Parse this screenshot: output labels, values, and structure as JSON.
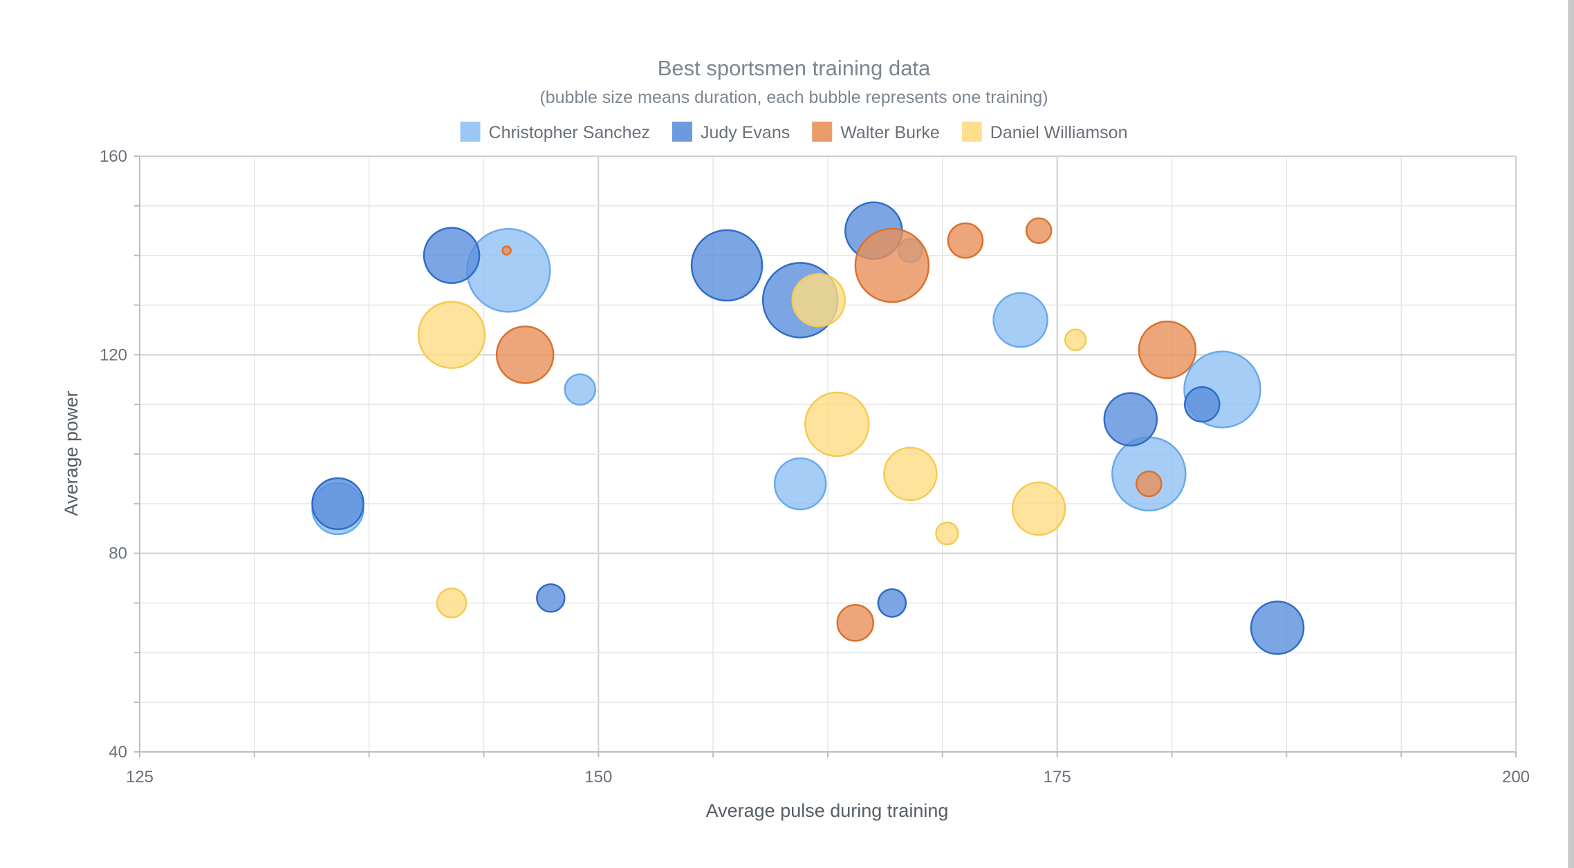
{
  "chart_data": {
    "type": "scatter",
    "title": "Best sportsmen training data",
    "subtitle": "(bubble size means duration, each bubble represents one training)",
    "xlabel": "Average pulse during training",
    "ylabel": "Average power",
    "xlim": [
      125,
      200
    ],
    "ylim": [
      40,
      160
    ],
    "x_ticks": [
      "125",
      "150",
      "175",
      "200"
    ],
    "y_ticks": [
      "40",
      "80",
      "120",
      "160"
    ],
    "grid": true,
    "legend_position": "top",
    "series": [
      {
        "name": "Christopher Sanchez",
        "fill": "#8fc1f2",
        "stroke": "#6aa9ec",
        "points": [
          {
            "x": 135.8,
            "y": 89,
            "size": 37
          },
          {
            "x": 145.1,
            "y": 137,
            "size": 60
          },
          {
            "x": 149.0,
            "y": 113,
            "size": 22
          },
          {
            "x": 161.0,
            "y": 94,
            "size": 37
          },
          {
            "x": 173.0,
            "y": 127,
            "size": 39
          },
          {
            "x": 180.0,
            "y": 96,
            "size": 53
          },
          {
            "x": 184.0,
            "y": 113,
            "size": 55
          },
          {
            "x": 167.0,
            "y": 141,
            "size": 17
          }
        ]
      },
      {
        "name": "Judy Evans",
        "fill": "#5b8fdc",
        "stroke": "#2f6cc8",
        "points": [
          {
            "x": 135.8,
            "y": 90,
            "size": 37
          },
          {
            "x": 142.0,
            "y": 140,
            "size": 40
          },
          {
            "x": 147.4,
            "y": 71,
            "size": 20
          },
          {
            "x": 157.0,
            "y": 138,
            "size": 51
          },
          {
            "x": 161.0,
            "y": 131,
            "size": 54
          },
          {
            "x": 165.0,
            "y": 145,
            "size": 41
          },
          {
            "x": 179.0,
            "y": 107,
            "size": 38
          },
          {
            "x": 182.9,
            "y": 110,
            "size": 25
          },
          {
            "x": 166.0,
            "y": 70,
            "size": 20
          },
          {
            "x": 187.0,
            "y": 65,
            "size": 38
          }
        ]
      },
      {
        "name": "Walter Burke",
        "fill": "#e8905a",
        "stroke": "#d9712f",
        "points": [
          {
            "x": 145.0,
            "y": 141,
            "size": 6
          },
          {
            "x": 146.0,
            "y": 120,
            "size": 41
          },
          {
            "x": 166.0,
            "y": 138,
            "size": 53
          },
          {
            "x": 170.0,
            "y": 143,
            "size": 25
          },
          {
            "x": 174.0,
            "y": 145,
            "size": 18
          },
          {
            "x": 181.0,
            "y": 121,
            "size": 41
          },
          {
            "x": 180.0,
            "y": 94,
            "size": 18
          },
          {
            "x": 164.0,
            "y": 66,
            "size": 26
          }
        ]
      },
      {
        "name": "Daniel Williamson",
        "fill": "#fddc82",
        "stroke": "#f5cb54",
        "points": [
          {
            "x": 142.0,
            "y": 70,
            "size": 21
          },
          {
            "x": 142.0,
            "y": 124,
            "size": 48
          },
          {
            "x": 162.0,
            "y": 131,
            "size": 38
          },
          {
            "x": 163.0,
            "y": 106,
            "size": 46
          },
          {
            "x": 167.0,
            "y": 96,
            "size": 38
          },
          {
            "x": 169.0,
            "y": 84,
            "size": 16
          },
          {
            "x": 174.0,
            "y": 89,
            "size": 38
          },
          {
            "x": 176.0,
            "y": 123,
            "size": 15
          }
        ]
      }
    ]
  }
}
